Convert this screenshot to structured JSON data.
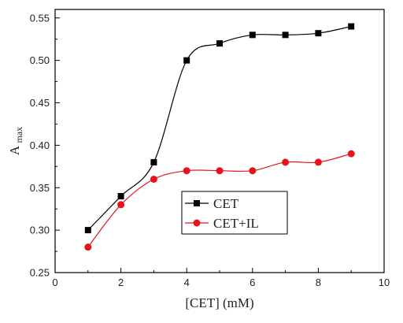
{
  "chart_data": {
    "type": "line",
    "xlabel": "[CET] (mM)",
    "ylabel_main": "A",
    "ylabel_sub": "max",
    "xlim": [
      0,
      10
    ],
    "ylim": [
      0.25,
      0.56
    ],
    "xticks": [
      0,
      2,
      4,
      6,
      8,
      10
    ],
    "yticks": [
      0.25,
      0.3,
      0.35,
      0.4,
      0.45,
      0.5,
      0.55
    ],
    "xtick_labels": [
      "0",
      "2",
      "4",
      "6",
      "8",
      "10"
    ],
    "ytick_labels": [
      "0.25",
      "0.30",
      "0.35",
      "0.40",
      "0.45",
      "0.50",
      "0.55"
    ],
    "grid": false,
    "legend_position": "center",
    "series": [
      {
        "name": "CET",
        "marker": "square",
        "color": "#000000",
        "x": [
          1,
          2,
          3,
          4,
          5,
          6,
          7,
          8,
          9
        ],
        "values": [
          0.3,
          0.34,
          0.38,
          0.5,
          0.52,
          0.53,
          0.53,
          0.532,
          0.54
        ]
      },
      {
        "name": "CET+IL",
        "marker": "circle",
        "color": "#e8141c",
        "x": [
          1,
          2,
          3,
          4,
          5,
          6,
          7,
          8,
          9
        ],
        "values": [
          0.28,
          0.33,
          0.36,
          0.37,
          0.37,
          0.37,
          0.38,
          0.38,
          0.39
        ]
      }
    ]
  }
}
